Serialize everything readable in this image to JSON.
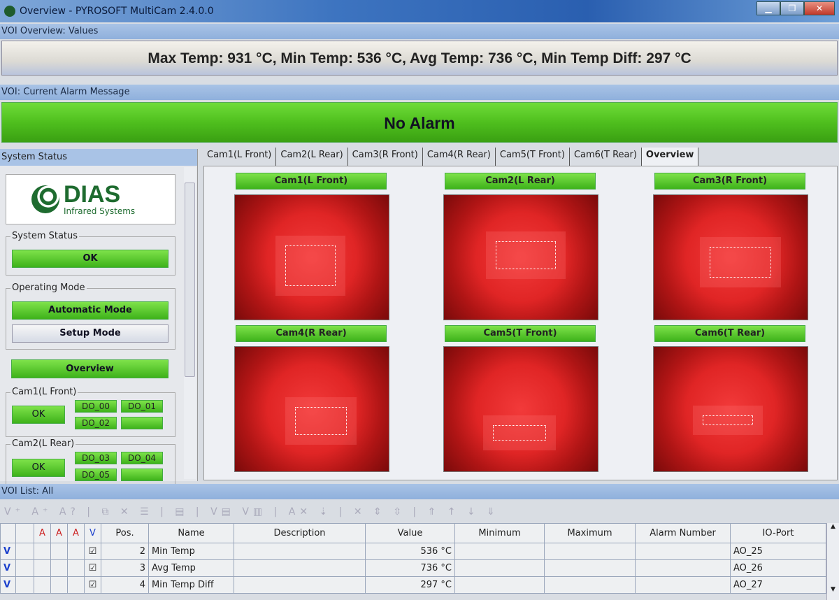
{
  "window": {
    "title": "Overview - PYROSOFT MultiCam 2.4.0.0",
    "minimize": "▁",
    "maximize": "❐",
    "close": "✕"
  },
  "voi_overview": {
    "header": "VOI Overview: Values",
    "text": "Max Temp: 931 °C, Min Temp: 536 °C, Avg Temp: 736 °C, Min Temp Diff: 297 °C"
  },
  "alarm": {
    "header": "VOI: Current Alarm Message",
    "text": "No Alarm"
  },
  "system_status": {
    "header": "System Status",
    "logo": {
      "brand": "DIAS",
      "sub": "Infrared Systems"
    },
    "status_group": "System Status",
    "status_button": "OK",
    "mode_group": "Operating Mode",
    "automatic": "Automatic Mode",
    "setup": "Setup Mode",
    "overview": "Overview",
    "cams": [
      {
        "label": "Cam1(L Front)",
        "status": "OK",
        "dos": [
          "DO_00",
          "DO_01",
          "DO_02",
          ""
        ]
      },
      {
        "label": "Cam2(L Rear)",
        "status": "OK",
        "dos": [
          "DO_03",
          "DO_04",
          "DO_05",
          ""
        ]
      }
    ]
  },
  "tabs": [
    "Cam1(L Front)",
    "Cam2(L Rear)",
    "Cam3(R Front)",
    "Cam4(R Rear)",
    "Cam5(T Front)",
    "Cam6(T Rear)",
    "Overview"
  ],
  "active_tab": "Overview",
  "cameras": [
    "Cam1(L Front)",
    "Cam2(L Rear)",
    "Cam3(R Front)",
    "Cam4(R Rear)",
    "Cam5(T Front)",
    "Cam6(T Rear)"
  ],
  "voi_list": {
    "header": "VOI List: All",
    "columns": [
      "Pos.",
      "Name",
      "Description",
      "Value",
      "Minimum",
      "Maximum",
      "Alarm Number",
      "IO-Port"
    ],
    "rows": [
      {
        "flag": "V",
        "checked": true,
        "pos": "2",
        "name": "Min Temp",
        "description": "",
        "value": "536 °C",
        "minimum": "",
        "maximum": "",
        "alarm": "",
        "io": "AO_25"
      },
      {
        "flag": "V",
        "checked": true,
        "pos": "3",
        "name": "Avg Temp",
        "description": "",
        "value": "736 °C",
        "minimum": "",
        "maximum": "",
        "alarm": "",
        "io": "AO_26"
      },
      {
        "flag": "V",
        "checked": true,
        "pos": "4",
        "name": "Min Temp Diff",
        "description": "",
        "value": "297 °C",
        "minimum": "",
        "maximum": "",
        "alarm": "",
        "io": "AO_27"
      }
    ]
  },
  "colors": {
    "ok_green": "#4fbf1e",
    "title_blue": "#3d74c0",
    "thermal_red": "#e02525"
  }
}
